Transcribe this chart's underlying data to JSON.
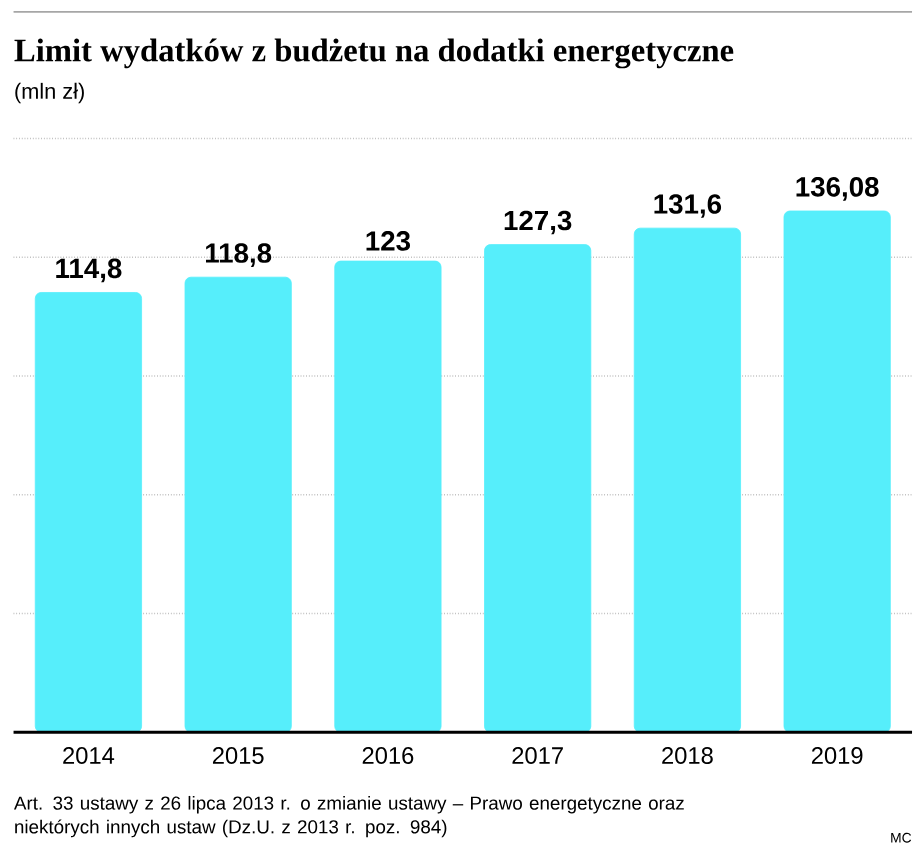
{
  "chart_data": {
    "type": "bar",
    "title": "Limit wydatków z budżetu na dodatki energetyczne",
    "subtitle": "(mln zł)",
    "categories": [
      "2014",
      "2015",
      "2016",
      "2017",
      "2018",
      "2019"
    ],
    "values": [
      114.8,
      118.8,
      123,
      127.3,
      131.6,
      136.08
    ],
    "value_labels": [
      "114,8",
      "118,8",
      "123",
      "127,3",
      "131,6",
      "136,08"
    ],
    "color": "#56eefb",
    "ylim": [
      0,
      155
    ],
    "yticks": [
      {
        "value": 31,
        "label": null
      },
      {
        "value": 62,
        "label": null
      },
      {
        "value": 93,
        "label": null
      },
      {
        "value": 124,
        "label": null
      },
      {
        "value": 155,
        "label": null
      }
    ],
    "grid": "y",
    "annotations": [
      "Art. 33 ustawy z 26 lipca 2013 r. o zmianie ustawy – Prawo energetyczne oraz niektórych innych ustaw (Dz.U. z 2013 r. poz. 984)",
      "MC"
    ]
  }
}
